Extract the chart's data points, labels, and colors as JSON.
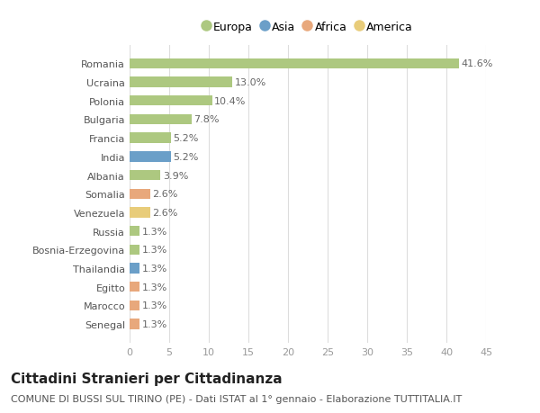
{
  "countries": [
    "Romania",
    "Ucraina",
    "Polonia",
    "Bulgaria",
    "Francia",
    "India",
    "Albania",
    "Somalia",
    "Venezuela",
    "Russia",
    "Bosnia-Erzegovina",
    "Thailandia",
    "Egitto",
    "Marocco",
    "Senegal"
  ],
  "values": [
    41.6,
    13.0,
    10.4,
    7.8,
    5.2,
    5.2,
    3.9,
    2.6,
    2.6,
    1.3,
    1.3,
    1.3,
    1.3,
    1.3,
    1.3
  ],
  "continents": [
    "Europa",
    "Europa",
    "Europa",
    "Europa",
    "Europa",
    "Asia",
    "Europa",
    "Africa",
    "America",
    "Europa",
    "Europa",
    "Asia",
    "Africa",
    "Africa",
    "Africa"
  ],
  "colors": {
    "Europa": "#adc880",
    "Asia": "#6b9fc8",
    "Africa": "#e8a87c",
    "America": "#e8cc7a"
  },
  "title": "Cittadini Stranieri per Cittadinanza",
  "subtitle": "COMUNE DI BUSSI SUL TIRINO (PE) - Dati ISTAT al 1° gennaio - Elaborazione TUTTITALIA.IT",
  "xlim": [
    0,
    45
  ],
  "xticks": [
    0,
    5,
    10,
    15,
    20,
    25,
    30,
    35,
    40,
    45
  ],
  "bg_color": "#ffffff",
  "grid_color": "#dddddd",
  "bar_height": 0.55,
  "label_fontsize": 8,
  "value_fontsize": 8,
  "title_fontsize": 11,
  "subtitle_fontsize": 8
}
